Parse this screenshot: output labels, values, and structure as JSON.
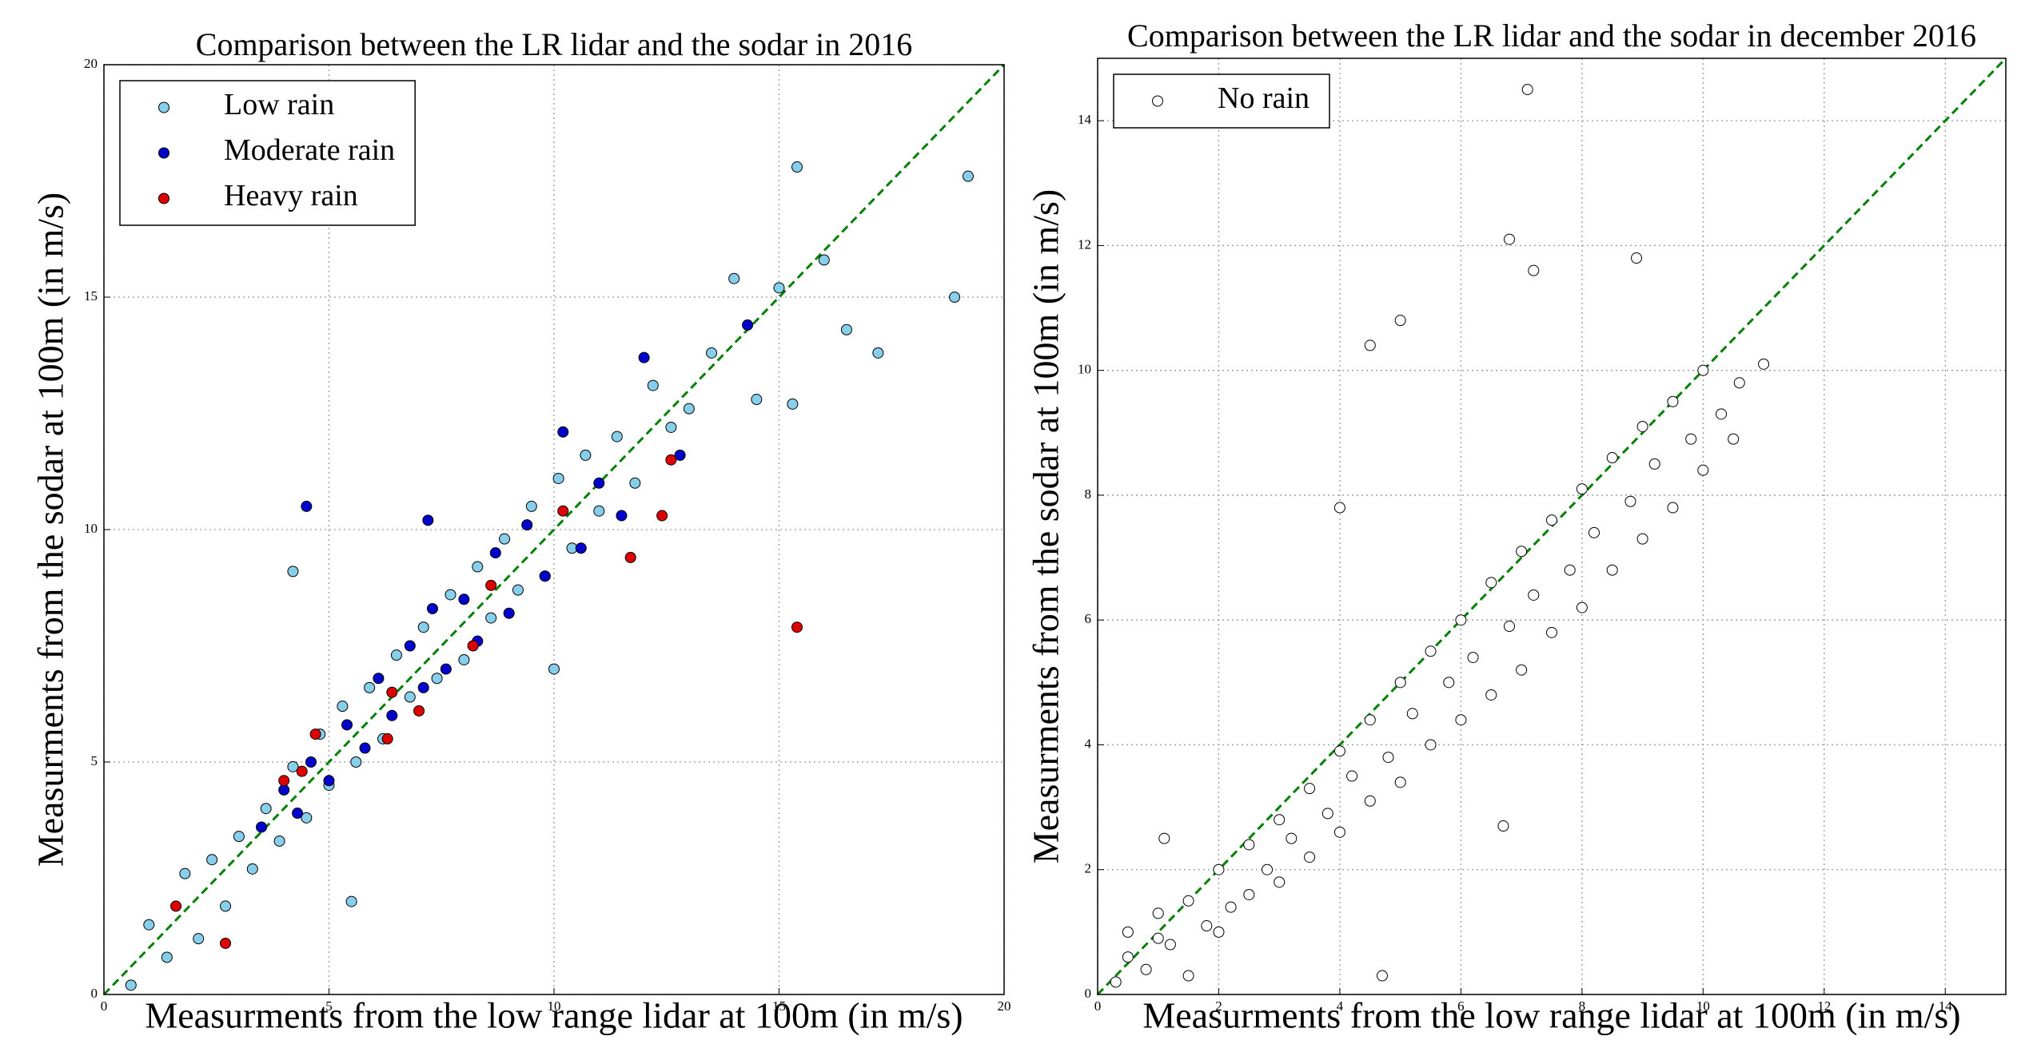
{
  "chart_data": [
    {
      "type": "scatter",
      "title": "Comparison between the LR lidar and the sodar in 2016",
      "x_label": "Measurments from the low range lidar at 100m (in m/s)",
      "y_label": "Measurments from the sodar at 100m (in m/s)",
      "xlim": [
        0,
        20
      ],
      "ylim": [
        0,
        20
      ],
      "xticks": [
        0,
        5,
        10,
        15,
        20
      ],
      "yticks": [
        0,
        5,
        10,
        15,
        20
      ],
      "grid": true,
      "legend": "upper left",
      "series": [
        {
          "name": "Low rain",
          "color": "#87ceeb",
          "x": [
            0.6,
            1.0,
            1.4,
            1.8,
            2.1,
            2.4,
            2.7,
            3.0,
            3.3,
            3.6,
            3.9,
            4.2,
            4.5,
            4.8,
            5.0,
            5.3,
            5.6,
            5.9,
            6.2,
            6.5,
            6.8,
            7.1,
            7.4,
            7.7,
            8.0,
            8.3,
            8.6,
            8.9,
            9.2,
            9.5,
            9.8,
            10.1,
            10.4,
            10.7,
            11.0,
            11.4,
            11.8,
            12.2,
            12.6,
            13.0,
            13.5,
            14.0,
            14.5,
            15.0,
            15.4,
            16.0,
            16.5,
            17.2,
            18.9,
            19.2,
            4.2,
            5.5,
            10.0,
            15.3
          ],
          "values": [
            0.2,
            1.5,
            0.8,
            2.6,
            1.2,
            2.9,
            1.9,
            3.4,
            2.7,
            4.0,
            3.3,
            4.9,
            3.8,
            5.6,
            4.5,
            6.2,
            5.0,
            6.6,
            5.5,
            7.3,
            6.4,
            7.9,
            6.8,
            8.6,
            7.2,
            9.2,
            8.1,
            9.8,
            8.7,
            10.5,
            9.0,
            11.1,
            9.6,
            11.6,
            10.4,
            12.0,
            11.0,
            13.1,
            12.2,
            12.6,
            13.8,
            15.4,
            12.8,
            15.2,
            17.8,
            15.8,
            14.3,
            13.8,
            15.0,
            17.6,
            9.1,
            2.0,
            7.0,
            12.7
          ]
        },
        {
          "name": "Moderate rain",
          "color": "#0000cc",
          "x": [
            3.5,
            4.0,
            4.3,
            4.6,
            5.0,
            5.4,
            5.8,
            6.1,
            6.4,
            6.8,
            7.1,
            7.3,
            7.6,
            8.0,
            8.3,
            8.7,
            9.0,
            9.4,
            9.8,
            10.2,
            10.6,
            11.0,
            11.5,
            12.0,
            12.8,
            14.3,
            4.5,
            7.2
          ],
          "values": [
            3.6,
            4.4,
            3.9,
            5.0,
            4.6,
            5.8,
            5.3,
            6.8,
            6.0,
            7.5,
            6.6,
            8.3,
            7.0,
            8.5,
            7.6,
            9.5,
            8.2,
            10.1,
            9.0,
            12.1,
            9.6,
            11.0,
            10.3,
            13.7,
            11.6,
            14.4,
            10.5,
            10.2
          ]
        },
        {
          "name": "Heavy rain",
          "color": "#dd0000",
          "x": [
            1.6,
            2.7,
            4.0,
            4.4,
            4.7,
            6.3,
            6.4,
            7.0,
            8.2,
            8.6,
            11.7,
            12.4,
            12.6,
            15.4,
            10.2
          ],
          "values": [
            1.9,
            1.1,
            4.6,
            4.8,
            5.6,
            5.5,
            6.5,
            6.1,
            7.5,
            8.8,
            9.4,
            10.3,
            11.5,
            7.9,
            10.4
          ]
        }
      ]
    },
    {
      "type": "scatter",
      "title": "Comparison between the LR lidar and the sodar in december 2016",
      "x_label": "Measurments from the low range lidar at 100m (in m/s)",
      "y_label": "Measurments from the sodar at 100m (in m/s)",
      "xlim": [
        0,
        15
      ],
      "ylim": [
        0,
        15
      ],
      "xticks": [
        0,
        2,
        4,
        6,
        8,
        10,
        12,
        14
      ],
      "yticks": [
        0,
        2,
        4,
        6,
        8,
        10,
        12,
        14
      ],
      "grid": true,
      "legend": "upper left",
      "series": [
        {
          "name": "No rain",
          "color": "#ffffff",
          "x": [
            0.3,
            0.5,
            0.8,
            1.0,
            1.2,
            1.5,
            1.8,
            2.0,
            2.2,
            2.5,
            2.8,
            3.0,
            3.2,
            3.5,
            3.8,
            4.0,
            4.2,
            4.5,
            4.8,
            5.0,
            5.2,
            5.5,
            5.8,
            6.0,
            6.2,
            6.5,
            6.8,
            7.0,
            7.2,
            7.5,
            7.8,
            8.0,
            8.2,
            8.5,
            8.8,
            9.0,
            9.2,
            9.5,
            9.8,
            10.0,
            10.3,
            10.6,
            11.0,
            0.5,
            1.0,
            1.5,
            2.0,
            2.5,
            3.0,
            3.5,
            4.0,
            4.5,
            5.0,
            5.5,
            6.0,
            6.5,
            7.0,
            7.5,
            8.0,
            8.5,
            9.0,
            9.5,
            10.0,
            10.5,
            7.1,
            6.8,
            7.2,
            8.9,
            4.5,
            5.0,
            4.0,
            6.7,
            4.7,
            1.1
          ],
          "values": [
            0.2,
            1.0,
            0.4,
            1.3,
            0.8,
            1.5,
            1.1,
            2.0,
            1.4,
            2.4,
            2.0,
            2.8,
            2.5,
            3.3,
            2.9,
            3.9,
            3.5,
            4.4,
            3.8,
            5.0,
            4.5,
            5.5,
            5.0,
            6.0,
            5.4,
            6.6,
            5.9,
            7.1,
            6.4,
            7.6,
            6.8,
            8.1,
            7.4,
            8.6,
            7.9,
            9.1,
            8.5,
            9.5,
            8.9,
            10.0,
            9.3,
            9.8,
            10.1,
            0.6,
            0.9,
            0.3,
            1.0,
            1.6,
            1.8,
            2.2,
            2.6,
            3.1,
            3.4,
            4.0,
            4.4,
            4.8,
            5.2,
            5.8,
            6.2,
            6.8,
            7.3,
            7.8,
            8.4,
            8.9,
            14.5,
            12.1,
            11.6,
            11.8,
            10.4,
            10.8,
            7.8,
            2.7,
            0.3,
            2.5
          ]
        }
      ]
    }
  ]
}
